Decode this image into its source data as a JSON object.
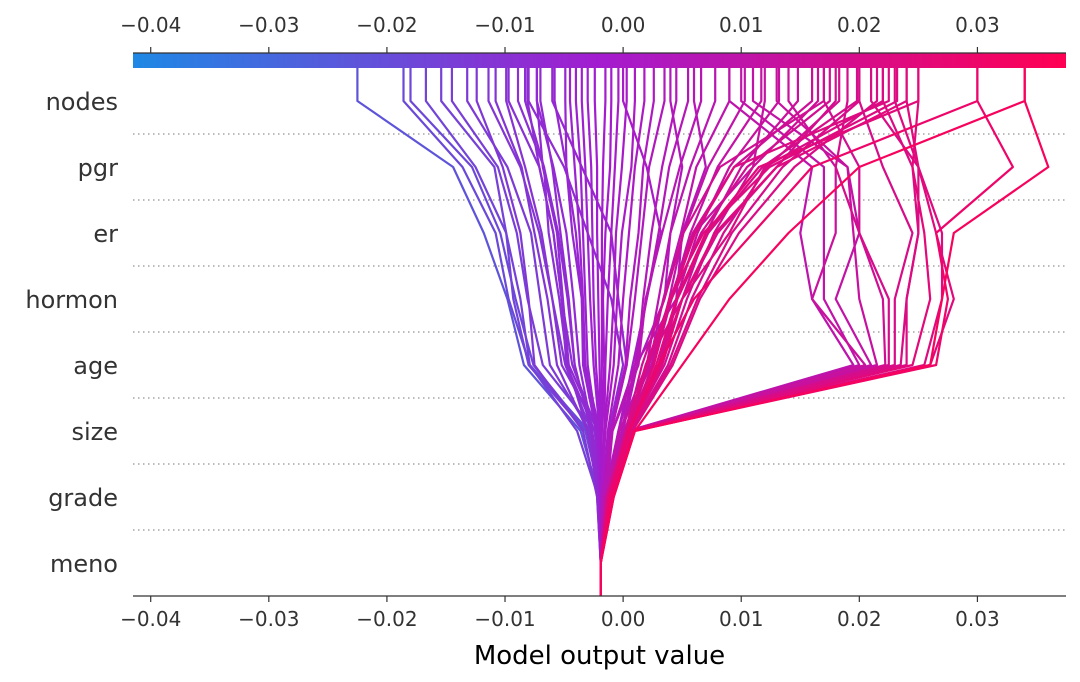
{
  "chart_data": {
    "type": "line",
    "subtype": "shap-decision-plot",
    "xlabel": "Model output value",
    "x_range": [
      -0.0415,
      0.0375
    ],
    "x_ticks": [
      -0.04,
      -0.03,
      -0.02,
      -0.01,
      0.0,
      0.01,
      0.02,
      0.03
    ],
    "x_tick_labels": [
      "−0.04",
      "−0.03",
      "−0.02",
      "−0.01",
      "0.00",
      "0.01",
      "0.02",
      "0.03"
    ],
    "features": [
      "nodes",
      "pgr",
      "er",
      "hormon",
      "age",
      "size",
      "grade",
      "meno"
    ],
    "base_value": -0.0019,
    "colormap": {
      "low": "#1e88e5",
      "mid": "#a31ccf",
      "high": "#ff0052"
    },
    "gridlines": "dotted",
    "series": [
      {
        "name": "path-01",
        "values": [
          -0.0186,
          -0.0136,
          -0.0108,
          -0.0097,
          -0.0079,
          -0.0029,
          -0.0018,
          -0.0019
        ]
      },
      {
        "name": "path-02",
        "values": [
          -0.018,
          -0.0128,
          -0.0104,
          -0.0091,
          -0.0076,
          -0.0031,
          -0.0017,
          -0.0019
        ]
      },
      {
        "name": "path-03",
        "values": [
          -0.0225,
          -0.0144,
          -0.0118,
          -0.0098,
          -0.0084,
          -0.0036,
          -0.002,
          -0.0019
        ]
      },
      {
        "name": "path-04",
        "values": [
          -0.0154,
          -0.0109,
          -0.0099,
          -0.0087,
          -0.0079,
          -0.0039,
          -0.0021,
          -0.0019
        ]
      },
      {
        "name": "path-05",
        "values": [
          -0.0167,
          -0.0125,
          -0.0099,
          -0.0093,
          -0.008,
          -0.0032,
          -0.0019,
          -0.0019
        ]
      },
      {
        "name": "path-06",
        "values": [
          -0.0145,
          -0.0106,
          -0.009,
          -0.0081,
          -0.0068,
          -0.0024,
          -0.0018,
          -0.0019
        ]
      },
      {
        "name": "path-07",
        "values": [
          -0.0124,
          -0.0102,
          -0.0087,
          -0.008,
          -0.0075,
          -0.0034,
          -0.0022,
          -0.0019
        ]
      },
      {
        "name": "path-08",
        "values": [
          -0.0108,
          -0.0086,
          -0.0075,
          -0.0064,
          -0.0056,
          -0.003,
          -0.0021,
          -0.0019
        ]
      },
      {
        "name": "path-09",
        "values": [
          -0.0114,
          -0.0087,
          -0.0071,
          -0.006,
          -0.0049,
          -0.0027,
          -0.0019,
          -0.0019
        ]
      },
      {
        "name": "path-10",
        "values": [
          -0.0132,
          -0.0098,
          -0.0078,
          -0.007,
          -0.0062,
          -0.0028,
          -0.002,
          -0.0019
        ]
      },
      {
        "name": "path-11",
        "values": [
          -0.0099,
          -0.0083,
          -0.0069,
          -0.006,
          -0.0052,
          -0.0021,
          -0.0018,
          -0.0019
        ]
      },
      {
        "name": "path-12",
        "values": [
          -0.0089,
          -0.0067,
          -0.0063,
          -0.0054,
          -0.0047,
          -0.003,
          -0.0021,
          -0.0019
        ]
      },
      {
        "name": "path-13",
        "values": [
          -0.0097,
          -0.0071,
          -0.0059,
          -0.0052,
          -0.0043,
          -0.0022,
          -0.0019,
          -0.0019
        ]
      },
      {
        "name": "path-14",
        "values": [
          -0.0081,
          -0.0071,
          -0.0059,
          -0.0052,
          -0.0048,
          -0.0024,
          -0.002,
          -0.0019
        ]
      },
      {
        "name": "path-15",
        "values": [
          -0.0083,
          -0.0067,
          -0.0055,
          -0.0047,
          -0.0041,
          -0.0027,
          -0.0021,
          -0.0019
        ]
      },
      {
        "name": "path-16",
        "values": [
          -0.0073,
          -0.0068,
          -0.0056,
          -0.0051,
          -0.0046,
          -0.0021,
          -0.002,
          -0.0019
        ]
      },
      {
        "name": "path-17",
        "values": [
          -0.0073,
          -0.0059,
          -0.0048,
          -0.0042,
          -0.0037,
          -0.0026,
          -0.002,
          -0.0019
        ]
      },
      {
        "name": "path-18",
        "values": [
          -0.007,
          -0.006,
          -0.0053,
          -0.0046,
          -0.0041,
          -0.0027,
          -0.0022,
          -0.0019
        ]
      },
      {
        "name": "path-19",
        "values": [
          -0.0058,
          -0.0048,
          -0.0043,
          -0.0035,
          -0.0033,
          -0.0021,
          -0.0018,
          -0.0019
        ]
      },
      {
        "name": "path-20",
        "values": [
          -0.0049,
          -0.0048,
          -0.004,
          -0.0035,
          -0.0034,
          -0.0023,
          -0.0019,
          -0.0019
        ]
      },
      {
        "name": "path-21",
        "values": [
          -0.0045,
          -0.0041,
          -0.0037,
          -0.0034,
          -0.0032,
          -0.002,
          -0.002,
          -0.0019
        ]
      },
      {
        "name": "path-22",
        "values": [
          -0.004,
          -0.0036,
          -0.0034,
          -0.0032,
          -0.003,
          -0.0022,
          -0.002,
          -0.0019
        ]
      },
      {
        "name": "path-23",
        "values": [
          -0.0035,
          -0.0032,
          -0.003,
          -0.0028,
          -0.0025,
          -0.002,
          -0.0019,
          -0.0019
        ]
      },
      {
        "name": "path-24",
        "values": [
          -0.003,
          -0.0027,
          -0.0026,
          -0.0025,
          -0.0023,
          -0.0019,
          -0.0019,
          -0.0019
        ]
      },
      {
        "name": "path-25",
        "values": [
          -0.0024,
          -0.0022,
          -0.0022,
          -0.0021,
          -0.002,
          -0.0019,
          -0.0019,
          -0.0019
        ]
      },
      {
        "name": "path-26",
        "values": [
          -0.0015,
          -0.0017,
          -0.0018,
          -0.0018,
          -0.0018,
          -0.0019,
          -0.0019,
          -0.0019
        ]
      },
      {
        "name": "path-27",
        "values": [
          -0.001,
          -0.0011,
          -0.0015,
          -0.0017,
          -0.0016,
          -0.0018,
          -0.0019,
          -0.0019
        ]
      },
      {
        "name": "path-28",
        "values": [
          -0.0004,
          -0.0007,
          -0.001,
          -0.0013,
          -0.0015,
          -0.0016,
          -0.0018,
          -0.0019
        ]
      },
      {
        "name": "path-29",
        "values": [
          0.0003,
          -0.0001,
          -0.0006,
          -0.0008,
          -0.0011,
          -0.0016,
          -0.0018,
          -0.0019
        ]
      },
      {
        "name": "path-30",
        "values": [
          0.001,
          0.0007,
          -0.0001,
          -0.0005,
          -0.0008,
          -0.0015,
          -0.0018,
          -0.0019
        ]
      },
      {
        "name": "path-31",
        "values": [
          0.0018,
          0.001,
          0.0005,
          0.0,
          -0.0004,
          -0.0013,
          -0.0017,
          -0.0019
        ]
      },
      {
        "name": "path-32",
        "values": [
          0.0026,
          0.0017,
          0.0013,
          0.0006,
          0.0002,
          -0.0011,
          -0.0015,
          -0.0019
        ]
      },
      {
        "name": "path-33",
        "values": [
          0.0035,
          0.0022,
          0.0016,
          0.001,
          0.0003,
          -0.001,
          -0.0017,
          -0.0019
        ]
      },
      {
        "name": "path-34",
        "values": [
          0.0045,
          0.0033,
          0.0024,
          0.0017,
          0.0012,
          -0.0004,
          -0.0014,
          -0.0019
        ]
      },
      {
        "name": "path-35",
        "values": [
          0.0055,
          0.0039,
          0.003,
          0.002,
          0.001,
          -0.0009,
          -0.0014,
          -0.0019
        ]
      },
      {
        "name": "path-36",
        "values": [
          0.0066,
          0.0048,
          0.0033,
          0.0019,
          0.0013,
          -0.0009,
          -0.0017,
          -0.0019
        ]
      },
      {
        "name": "path-37",
        "values": [
          0.0078,
          0.0057,
          0.004,
          0.003,
          0.002,
          -0.0003,
          -0.0014,
          -0.0019
        ]
      },
      {
        "name": "path-38",
        "values": [
          0.009,
          0.0062,
          0.0049,
          0.0034,
          0.0022,
          0.0001,
          -0.0013,
          -0.0019
        ]
      },
      {
        "name": "path-39",
        "values": [
          0.0103,
          0.0072,
          0.0051,
          0.0039,
          0.0024,
          -0.0003,
          -0.0015,
          -0.0019
        ]
      },
      {
        "name": "path-40",
        "values": [
          0.0117,
          0.008,
          0.0057,
          0.0041,
          0.0026,
          0.0002,
          -0.0012,
          -0.0019
        ]
      },
      {
        "name": "path-41",
        "values": [
          0.0132,
          0.009,
          0.0063,
          0.0045,
          0.003,
          0.0003,
          -0.0012,
          -0.0019
        ]
      },
      {
        "name": "path-42",
        "values": [
          0.0148,
          0.01,
          0.007,
          0.005,
          0.0033,
          0.0004,
          -0.0011,
          -0.0019
        ]
      },
      {
        "name": "path-43",
        "values": [
          0.0165,
          0.011,
          0.0077,
          0.0054,
          0.0035,
          0.0005,
          -0.0011,
          -0.0019
        ]
      },
      {
        "name": "path-44",
        "values": [
          0.0183,
          0.0122,
          0.0085,
          0.0058,
          0.0038,
          0.0006,
          -0.001,
          -0.0019
        ]
      },
      {
        "name": "path-45",
        "values": [
          0.02,
          0.0135,
          0.0092,
          0.0063,
          0.004,
          0.0007,
          -0.001,
          -0.0019
        ]
      },
      {
        "name": "path-46",
        "values": [
          0.0215,
          0.0145,
          0.0098,
          0.0065,
          0.0042,
          0.0008,
          -0.0009,
          -0.0019
        ]
      },
      {
        "name": "path-47",
        "values": [
          0.0198,
          0.0118,
          0.0072,
          0.0046,
          0.0032,
          0.0005,
          -0.0012,
          -0.0019
        ]
      },
      {
        "name": "path-48",
        "values": [
          0.0175,
          0.0105,
          0.0066,
          0.0041,
          0.0025,
          0.0004,
          -0.0013,
          -0.0019
        ]
      },
      {
        "name": "path-49",
        "values": [
          0.024,
          0.013,
          0.0078,
          0.005,
          0.0033,
          0.0006,
          -0.0011,
          -0.0019
        ]
      },
      {
        "name": "path-50",
        "values": [
          0.0225,
          0.0094,
          0.0061,
          0.0041,
          0.0019,
          0.0003,
          -0.0013,
          -0.0019
        ]
      },
      {
        "name": "path-51",
        "values": [
          0.017,
          0.0082,
          0.0051,
          0.0035,
          0.0016,
          0.0002,
          -0.0014,
          -0.0019
        ]
      },
      {
        "name": "path-52",
        "values": [
          0.025,
          0.0115,
          0.007,
          0.0045,
          0.0028,
          0.0005,
          -0.0012,
          -0.0019
        ]
      },
      {
        "name": "path-53",
        "values": [
          0.0232,
          0.0124,
          0.0068,
          0.0039,
          0.0026,
          0.0004,
          -0.0012,
          -0.0019
        ]
      },
      {
        "name": "path-54",
        "values": [
          0.016,
          0.0094,
          0.0059,
          0.004,
          0.0022,
          0.0003,
          -0.0013,
          -0.0019
        ]
      },
      {
        "name": "path-55",
        "values": [
          0.034,
          0.02,
          0.014,
          0.009,
          0.005,
          0.001,
          -0.0008,
          -0.0019
        ]
      },
      {
        "name": "path-56",
        "values": [
          0.03,
          0.016,
          0.011,
          0.006,
          0.003,
          0.0005,
          -0.0011,
          -0.0019
        ]
      },
      {
        "name": "path-57",
        "values": [
          0.018,
          0.013,
          0.008,
          0.005,
          0.002,
          0.0003,
          -0.0013,
          -0.0019
        ]
      },
      {
        "name": "path-58",
        "values": [
          0.012,
          0.011,
          0.006,
          0.004,
          0.002,
          0.0002,
          -0.0014,
          -0.0019
        ]
      },
      {
        "name": "path-59",
        "values": [
          0.022,
          0.012,
          0.009,
          0.005,
          0.003,
          0.0005,
          -0.0011,
          -0.0019
        ]
      },
      {
        "name": "path-60",
        "values": [
          0.034,
          0.036,
          0.028,
          0.027,
          0.026,
          0.001,
          -0.0008,
          -0.0019
        ]
      },
      {
        "name": "path-61",
        "values": [
          0.03,
          0.033,
          0.0265,
          0.0275,
          0.0265,
          0.0009,
          -0.0009,
          -0.0019
        ]
      },
      {
        "name": "path-62",
        "values": [
          0.024,
          0.025,
          0.0265,
          0.028,
          0.026,
          0.0009,
          -0.001,
          -0.0019
        ]
      },
      {
        "name": "path-63",
        "values": [
          0.023,
          0.025,
          0.027,
          0.027,
          0.0255,
          0.0008,
          -0.001,
          -0.0019
        ]
      },
      {
        "name": "path-64",
        "values": [
          0.025,
          0.0245,
          0.0255,
          0.026,
          0.0245,
          0.0007,
          -0.001,
          -0.0019
        ]
      },
      {
        "name": "path-65",
        "values": [
          0.022,
          0.0245,
          0.025,
          0.024,
          0.024,
          0.0007,
          -0.0011,
          -0.0019
        ]
      },
      {
        "name": "path-66",
        "values": [
          0.021,
          0.025,
          0.025,
          0.024,
          0.0235,
          0.0006,
          -0.0011,
          -0.0019
        ]
      },
      {
        "name": "path-67",
        "values": [
          0.02,
          0.022,
          0.0245,
          0.023,
          0.023,
          0.0006,
          -0.0011,
          -0.0019
        ]
      },
      {
        "name": "path-68",
        "values": [
          0.019,
          0.018,
          0.02,
          0.0225,
          0.0225,
          0.0006,
          -0.0011,
          -0.0019
        ]
      },
      {
        "name": "path-69",
        "values": [
          0.017,
          0.02,
          0.02,
          0.022,
          0.0222,
          0.0005,
          -0.0012,
          -0.0019
        ]
      },
      {
        "name": "path-70",
        "values": [
          0.013,
          0.019,
          0.0195,
          0.02,
          0.0215,
          0.0005,
          -0.0012,
          -0.0019
        ]
      },
      {
        "name": "path-71",
        "values": [
          0.011,
          0.019,
          0.02,
          0.018,
          0.021,
          0.0005,
          -0.0012,
          -0.0019
        ]
      },
      {
        "name": "path-72",
        "values": [
          0.014,
          0.018,
          0.018,
          0.016,
          0.0205,
          0.0005,
          -0.0012,
          -0.0019
        ]
      },
      {
        "name": "path-73",
        "values": [
          0.01,
          0.017,
          0.017,
          0.017,
          0.02,
          0.0004,
          -0.0012,
          -0.0019
        ]
      },
      {
        "name": "path-74",
        "values": [
          0.009,
          0.016,
          0.015,
          0.016,
          0.0195,
          0.0004,
          -0.0013,
          -0.0019
        ]
      },
      {
        "name": "path-75",
        "values": [
          0.004,
          0.005,
          0.004,
          0.0035,
          0.0012,
          0.0,
          -0.0015,
          -0.0019
        ]
      },
      {
        "name": "path-76",
        "values": [
          0.006,
          0.007,
          0.005,
          0.0045,
          0.001,
          -0.0001,
          -0.0015,
          -0.0019
        ]
      },
      {
        "name": "path-77",
        "values": [
          0.0,
          0.002,
          0.0032,
          0.002,
          0.0008,
          -0.0004,
          -0.0016,
          -0.0019
        ]
      },
      {
        "name": "path-78",
        "values": [
          -0.006,
          -0.0035,
          -0.001,
          -0.0004,
          0.0003,
          -0.001,
          -0.0017,
          -0.0019
        ]
      },
      {
        "name": "path-79",
        "values": [
          -0.008,
          -0.005,
          -0.003,
          -0.001,
          0.0,
          -0.0012,
          -0.0017,
          -0.0019
        ]
      }
    ]
  }
}
